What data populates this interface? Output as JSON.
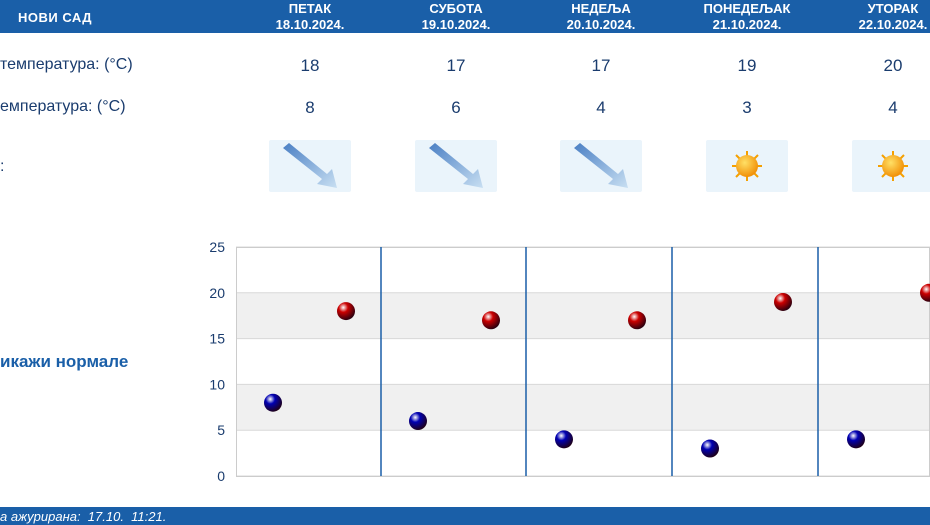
{
  "header": {
    "city": "НОВИ САД",
    "days": [
      {
        "name": "ПЕТАК",
        "date": "18.10.2024."
      },
      {
        "name": "СУБОТА",
        "date": "19.10.2024."
      },
      {
        "name": "НЕДЕЉА",
        "date": "20.10.2024."
      },
      {
        "name": "ПОНЕДЕЉАК",
        "date": "21.10.2024."
      },
      {
        "name": "УТОРАК",
        "date": "22.10.2024."
      }
    ]
  },
  "rows": {
    "max_label": "температура: (°C)",
    "min_label": "емпература: (°C)",
    "icon_label": ":"
  },
  "max_values": [
    "18",
    "17",
    "17",
    "19",
    "20"
  ],
  "min_values": [
    "8",
    "6",
    "4",
    "3",
    "4"
  ],
  "icons": [
    "wind-arrow-icon",
    "wind-arrow-icon",
    "wind-arrow-icon",
    "sun-icon",
    "sun-icon"
  ],
  "toggle_label": "икажи нормале",
  "footer": {
    "text": "а ажурирана:  17.10.  11:21."
  },
  "colors": {
    "header": "#1a5fa8",
    "max_marker": "#cc0000",
    "min_marker": "#0000b3",
    "separator": "#1a5fa8"
  },
  "chart_data": {
    "type": "scatter",
    "categories": [
      "ПЕТАК",
      "СУБОТА",
      "НЕДЕЉА",
      "ПОНЕДЕЉАК",
      "УТОРАК"
    ],
    "series": [
      {
        "values": [
          18,
          17,
          17,
          19,
          20
        ]
      },
      {
        "values": [
          8,
          6,
          4,
          3,
          4
        ]
      }
    ],
    "ylim": [
      0,
      25
    ],
    "yticks": [
      0,
      5,
      10,
      15,
      20,
      25
    ],
    "grid": true
  }
}
